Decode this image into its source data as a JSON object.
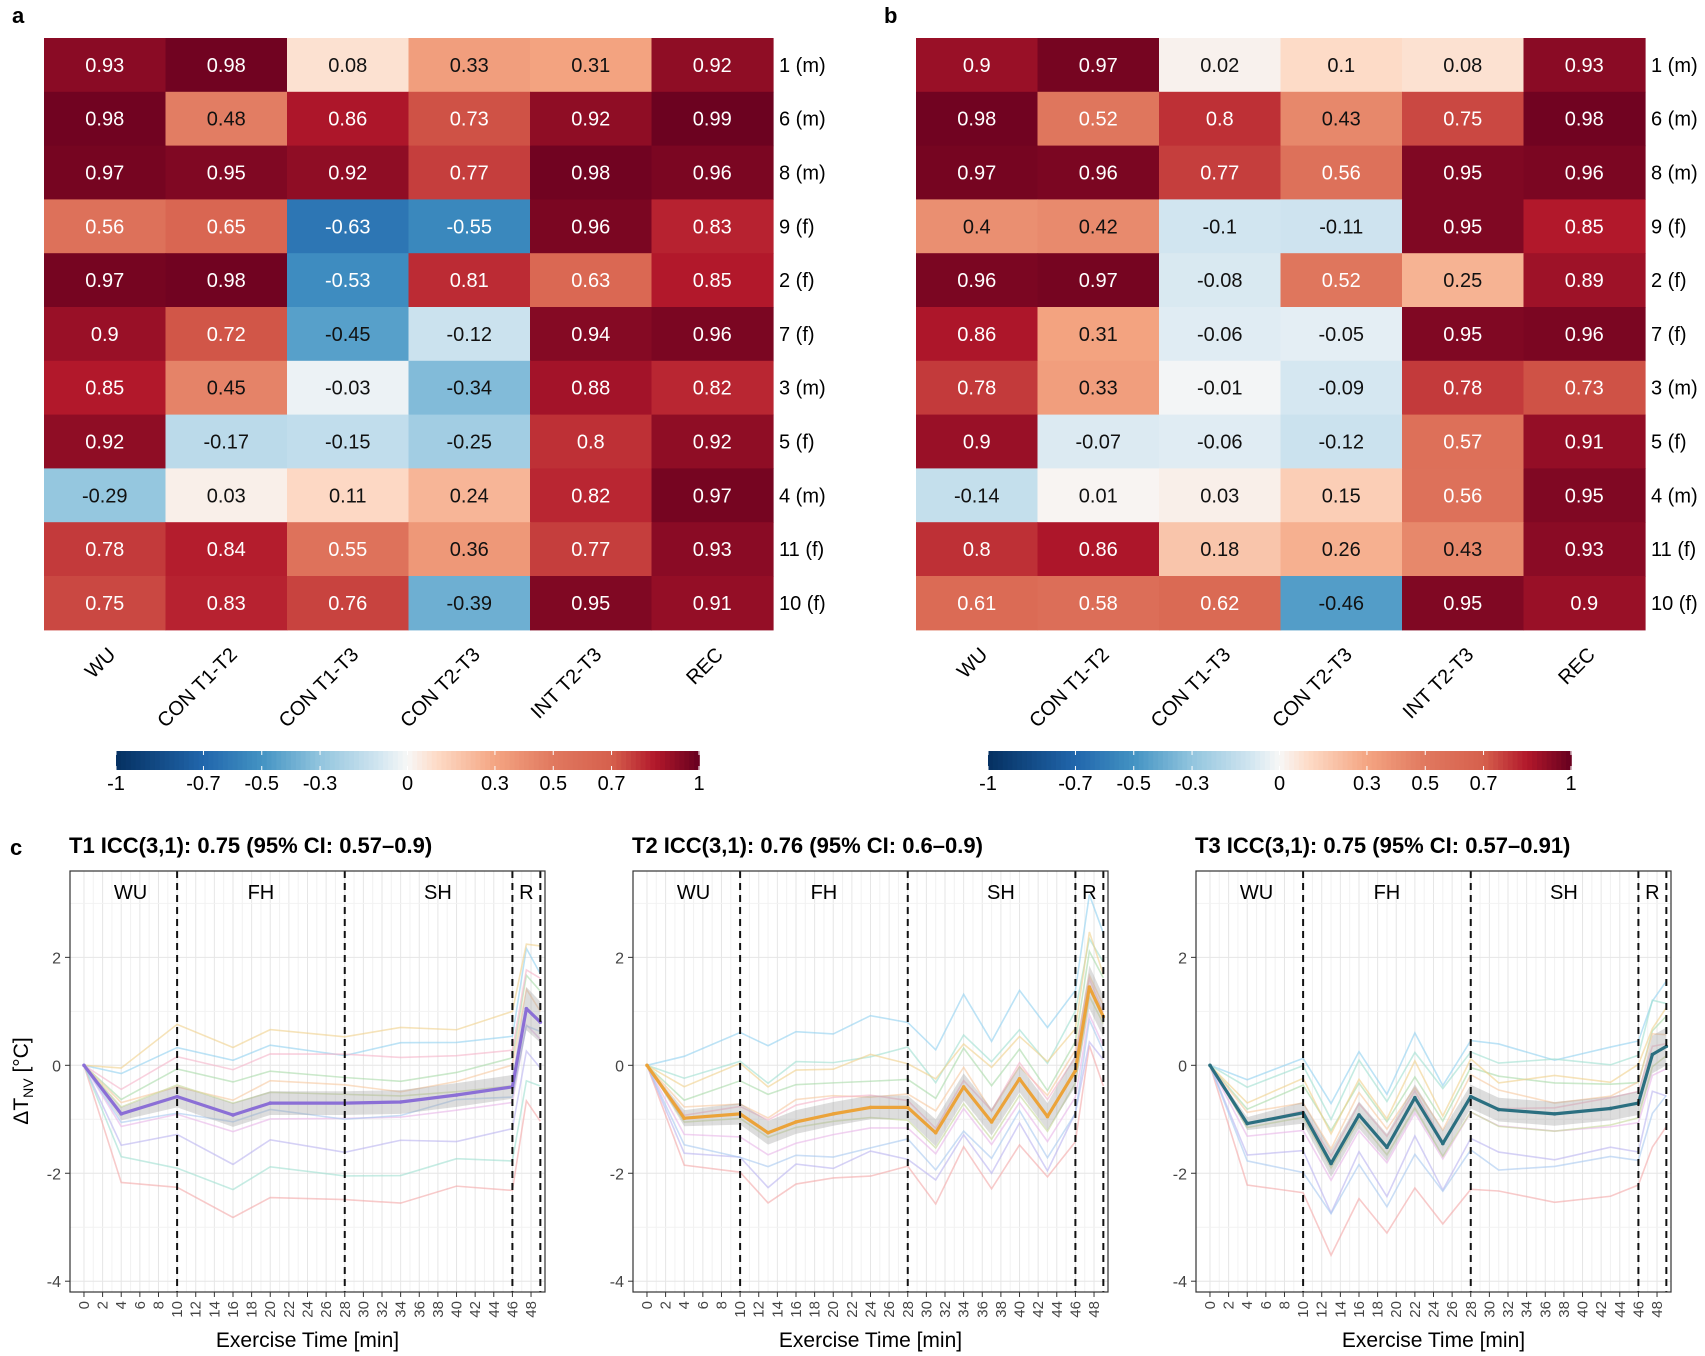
{
  "panels": {
    "a": {
      "label": "a",
      "chart_data": {
        "type": "heatmap",
        "columns": [
          "WU",
          "CON T1-T2",
          "CON T1-T3",
          "CON T2-T3",
          "INT T2-T3",
          "REC"
        ],
        "rows": [
          "1 (m)",
          "6 (m)",
          "8 (m)",
          "9 (f)",
          "2 (f)",
          "7 (f)",
          "3 (m)",
          "5 (f)",
          "4 (m)",
          "11 (f)",
          "10 (f)"
        ],
        "values": [
          [
            0.93,
            0.98,
            0.08,
            0.33,
            0.31,
            0.92
          ],
          [
            0.98,
            0.48,
            0.86,
            0.73,
            0.92,
            0.99
          ],
          [
            0.97,
            0.95,
            0.92,
            0.77,
            0.98,
            0.96
          ],
          [
            0.56,
            0.65,
            -0.63,
            -0.55,
            0.96,
            0.83
          ],
          [
            0.97,
            0.98,
            -0.53,
            0.81,
            0.63,
            0.85
          ],
          [
            0.9,
            0.72,
            -0.45,
            -0.12,
            0.94,
            0.96
          ],
          [
            0.85,
            0.45,
            -0.03,
            -0.34,
            0.88,
            0.82
          ],
          [
            0.92,
            -0.17,
            -0.15,
            -0.25,
            0.8,
            0.92
          ],
          [
            -0.29,
            0.03,
            0.11,
            0.24,
            0.82,
            0.97
          ],
          [
            0.78,
            0.84,
            0.55,
            0.36,
            0.77,
            0.93
          ],
          [
            0.75,
            0.83,
            0.76,
            -0.39,
            0.95,
            0.91
          ]
        ],
        "colorbar": {
          "min": -1,
          "max": 1,
          "ticks": [
            "-1",
            "-0.7",
            "-0.5",
            "-0.3",
            "0",
            "0.3",
            "0.5",
            "0.7",
            "1"
          ],
          "low_color": "#053061",
          "mid_color": "#f7f7f7",
          "high_color": "#67001f"
        }
      }
    },
    "b": {
      "label": "b",
      "chart_data": {
        "type": "heatmap",
        "columns": [
          "WU",
          "CON T1-T2",
          "CON T1-T3",
          "CON T2-T3",
          "INT T2-T3",
          "REC"
        ],
        "rows": [
          "1 (m)",
          "6 (m)",
          "8 (m)",
          "9 (f)",
          "2 (f)",
          "7 (f)",
          "3 (m)",
          "5 (f)",
          "4 (m)",
          "11 (f)",
          "10 (f)"
        ],
        "values": [
          [
            0.9,
            0.97,
            0.02,
            0.1,
            0.08,
            0.93
          ],
          [
            0.98,
            0.52,
            0.8,
            0.43,
            0.75,
            0.98
          ],
          [
            0.97,
            0.96,
            0.77,
            0.56,
            0.95,
            0.96
          ],
          [
            0.4,
            0.42,
            -0.1,
            -0.11,
            0.95,
            0.85
          ],
          [
            0.96,
            0.97,
            -0.08,
            0.52,
            0.25,
            0.89
          ],
          [
            0.86,
            0.31,
            -0.06,
            -0.05,
            0.95,
            0.96
          ],
          [
            0.78,
            0.33,
            -0.01,
            -0.09,
            0.78,
            0.73
          ],
          [
            0.9,
            -0.07,
            -0.06,
            -0.12,
            0.57,
            0.91
          ],
          [
            -0.14,
            0.01,
            0.03,
            0.15,
            0.56,
            0.95
          ],
          [
            0.8,
            0.86,
            0.18,
            0.26,
            0.43,
            0.93
          ],
          [
            0.61,
            0.58,
            0.62,
            -0.46,
            0.95,
            0.9
          ]
        ],
        "colorbar": {
          "min": -1,
          "max": 1,
          "ticks": [
            "-1",
            "-0.7",
            "-0.5",
            "-0.3",
            "0",
            "0.3",
            "0.5",
            "0.7",
            "1"
          ],
          "low_color": "#053061",
          "mid_color": "#f7f7f7",
          "high_color": "#67001f"
        }
      }
    },
    "c": {
      "label": "c",
      "ylabel_prefix": "ΔT",
      "ylabel_sub": "NV",
      "ylabel_suffix": " [°C]",
      "xlabel": "Exercise Time [min]",
      "x_ticks": [
        0,
        2,
        4,
        6,
        8,
        10,
        12,
        14,
        16,
        18,
        20,
        22,
        24,
        26,
        28,
        30,
        32,
        34,
        36,
        38,
        40,
        42,
        44,
        46,
        48
      ],
      "y_ticks": [
        -4,
        -2,
        0,
        2
      ],
      "xlim": [
        -1.5,
        49.5
      ],
      "ylim": [
        -4.2,
        3.6
      ],
      "phase_lines": [
        10,
        28,
        46,
        49
      ],
      "phases": [
        {
          "label": "WU",
          "x": 5
        },
        {
          "label": "FH",
          "x": 19
        },
        {
          "label": "SH",
          "x": 38
        },
        {
          "label": "R",
          "x": 47.5
        }
      ],
      "individual_colors": [
        "#f4a6a6",
        "#8fd0f0",
        "#a8dba8",
        "#e8b4e8",
        "#f6c89f",
        "#b9b3f0",
        "#9fe0d0",
        "#f5b3c8",
        "#c6d89a",
        "#a6c8f0",
        "#f0d08a"
      ],
      "plots": [
        {
          "title": "T1 ICC(3,1): 0.75 (95% CI: 0.57–0.9)",
          "chart_data": {
            "type": "line",
            "x": [
              0,
              4,
              10,
              16,
              20,
              28,
              34,
              40,
              46,
              47.5,
              49
            ],
            "mean": [
              0,
              -0.9,
              -0.58,
              -0.92,
              -0.7,
              -0.7,
              -0.68,
              -0.55,
              -0.4,
              1.05,
              0.8
            ],
            "ci_half_width": [
              0,
              0.12,
              0.2,
              0.22,
              0.22,
              0.22,
              0.22,
              0.22,
              0.22,
              0.4,
              0.38
            ],
            "mean_color": "#8b6fd6",
            "individual_offsets": [
              -1.8,
              1.0,
              0.5,
              -0.4,
              0.3,
              -0.8,
              -1.3,
              0.8,
              0.1,
              -0.2,
              1.3
            ]
          }
        },
        {
          "title": "T2 ICC(3,1): 0.76 (95% CI: 0.6–0.9)",
          "chart_data": {
            "type": "line",
            "x": [
              0,
              4,
              10,
              13,
              16,
              20,
              24,
              28,
              31,
              34,
              37,
              40,
              43,
              46,
              47.5,
              49
            ],
            "mean": [
              0,
              -0.98,
              -0.9,
              -1.25,
              -1.05,
              -0.9,
              -0.78,
              -0.78,
              -1.25,
              -0.4,
              -1.05,
              -0.25,
              -0.95,
              -0.1,
              1.45,
              0.9
            ],
            "ci_half_width": [
              0,
              0.15,
              0.2,
              0.22,
              0.22,
              0.22,
              0.22,
              0.22,
              0.25,
              0.25,
              0.25,
              0.25,
              0.25,
              0.3,
              0.4,
              0.38
            ],
            "mean_color": "#eba33a",
            "individual_offsets": [
              -1.2,
              1.6,
              0.6,
              -0.5,
              0.3,
              -0.9,
              1.0,
              0.2,
              -0.2,
              -0.7,
              0.9
            ]
          }
        },
        {
          "title": "T3 ICC(3,1): 0.75 (95% CI: 0.57–0.91)",
          "chart_data": {
            "type": "line",
            "x": [
              0,
              4,
              10,
              13,
              16,
              19,
              22,
              25,
              28,
              31,
              37,
              43,
              46,
              47.5,
              49
            ],
            "mean": [
              0,
              -1.08,
              -0.88,
              -1.82,
              -0.92,
              -1.52,
              -0.6,
              -1.45,
              -0.58,
              -0.82,
              -0.9,
              -0.8,
              -0.7,
              0.2,
              0.35
            ],
            "ci_half_width": [
              0,
              0.12,
              0.2,
              0.25,
              0.25,
              0.25,
              0.25,
              0.25,
              0.22,
              0.22,
              0.22,
              0.22,
              0.22,
              0.35,
              0.35
            ],
            "mean_color": "#2b6f80",
            "individual_offsets": [
              -1.6,
              1.1,
              0.5,
              -0.4,
              0.3,
              -0.8,
              0.9,
              0.1,
              -0.2,
              -1.0,
              0.6
            ]
          }
        }
      ]
    }
  }
}
